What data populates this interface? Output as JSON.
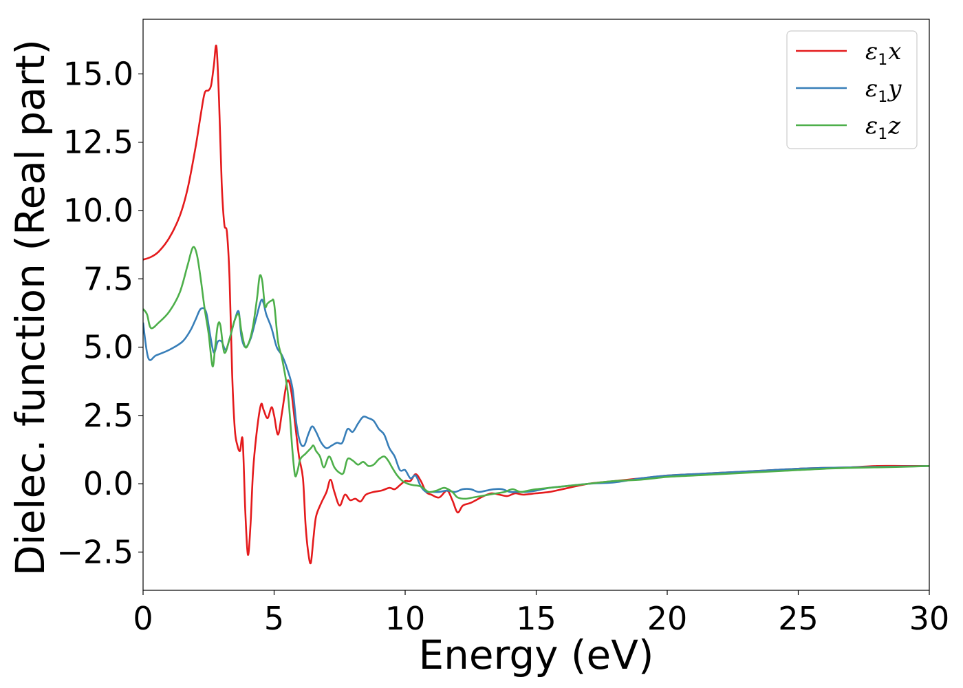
{
  "chart_data": {
    "type": "line",
    "xlabel": "Energy (eV)",
    "ylabel": "Dielec. function (Real part)",
    "xlim": [
      0,
      30
    ],
    "ylim": [
      -3.9,
      17
    ],
    "xticks": [
      0,
      5,
      10,
      15,
      20,
      25,
      30
    ],
    "xtick_labels": [
      "0",
      "5",
      "10",
      "15",
      "20",
      "25",
      "30"
    ],
    "yticks": [
      -2.5,
      0.0,
      2.5,
      5.0,
      7.5,
      10.0,
      12.5,
      15.0
    ],
    "ytick_labels": [
      "−2.5",
      "0.0",
      "2.5",
      "5.0",
      "7.5",
      "10.0",
      "12.5",
      "15.0"
    ],
    "grid": false,
    "legend_position": "top-right",
    "series": [
      {
        "name": "ε₁x",
        "legend_main": "ε",
        "legend_sub": "1",
        "legend_var": "x",
        "color": "#e41a1c",
        "x": [
          0,
          0.3,
          0.6,
          1.0,
          1.4,
          1.7,
          2.0,
          2.2,
          2.35,
          2.5,
          2.6,
          2.7,
          2.8,
          2.9,
          3.0,
          3.1,
          3.2,
          3.3,
          3.4,
          3.5,
          3.6,
          3.7,
          3.8,
          3.9,
          4.0,
          4.1,
          4.2,
          4.35,
          4.5,
          4.6,
          4.75,
          4.9,
          5.0,
          5.15,
          5.3,
          5.5,
          5.65,
          5.8,
          5.95,
          6.1,
          6.2,
          6.3,
          6.4,
          6.5,
          6.6,
          6.8,
          7.0,
          7.15,
          7.3,
          7.5,
          7.7,
          7.9,
          8.1,
          8.3,
          8.5,
          8.8,
          9.1,
          9.4,
          9.6,
          9.8,
          10.0,
          10.2,
          10.4,
          10.6,
          10.8,
          11.0,
          11.3,
          11.6,
          11.8,
          12.0,
          12.2,
          12.5,
          12.8,
          13.0,
          13.3,
          13.6,
          13.9,
          14.2,
          14.5,
          15.0,
          15.5,
          16.0,
          17.0,
          18.0,
          19.0,
          20.0,
          21.0,
          22.0,
          23.0,
          24.0,
          25.0,
          26.0,
          27.0,
          28.0,
          29.0,
          30.0
        ],
        "y": [
          8.2,
          8.3,
          8.5,
          9.0,
          9.8,
          10.8,
          12.3,
          13.5,
          14.3,
          14.4,
          14.6,
          15.3,
          16.0,
          14.0,
          11.0,
          9.5,
          9.2,
          7.5,
          4.0,
          2.0,
          1.4,
          1.2,
          1.6,
          -1.0,
          -2.6,
          -1.5,
          0.5,
          2.0,
          2.9,
          2.7,
          2.4,
          2.8,
          2.5,
          1.8,
          2.6,
          3.75,
          3.4,
          2.2,
          1.0,
          0.2,
          -1.5,
          -2.5,
          -2.9,
          -2.0,
          -1.2,
          -0.7,
          -0.3,
          0.15,
          -0.3,
          -0.8,
          -0.4,
          -0.6,
          -0.55,
          -0.65,
          -0.4,
          -0.3,
          -0.25,
          -0.15,
          -0.2,
          -0.05,
          0.1,
          0.1,
          0.35,
          0.1,
          -0.3,
          -0.4,
          -0.5,
          -0.25,
          -0.6,
          -1.05,
          -0.8,
          -0.7,
          -0.55,
          -0.45,
          -0.35,
          -0.4,
          -0.45,
          -0.35,
          -0.4,
          -0.35,
          -0.3,
          -0.2,
          0.0,
          0.1,
          0.2,
          0.3,
          0.35,
          0.4,
          0.45,
          0.5,
          0.55,
          0.58,
          0.6,
          0.65,
          0.65,
          0.65
        ]
      },
      {
        "name": "ε₁y",
        "legend_main": "ε",
        "legend_sub": "1",
        "legend_var": "y",
        "color": "#377eb8",
        "x": [
          0,
          0.2,
          0.5,
          1.0,
          1.5,
          1.8,
          2.0,
          2.2,
          2.4,
          2.55,
          2.7,
          2.85,
          3.0,
          3.15,
          3.3,
          3.5,
          3.65,
          3.75,
          3.9,
          4.1,
          4.3,
          4.5,
          4.6,
          4.7,
          4.9,
          5.1,
          5.3,
          5.5,
          5.7,
          5.85,
          6.0,
          6.15,
          6.3,
          6.45,
          6.6,
          6.8,
          7.0,
          7.2,
          7.4,
          7.6,
          7.8,
          8.0,
          8.2,
          8.4,
          8.6,
          8.8,
          9.0,
          9.2,
          9.4,
          9.6,
          9.8,
          10.0,
          10.2,
          10.4,
          10.6,
          10.8,
          11.0,
          11.3,
          11.6,
          11.9,
          12.2,
          12.5,
          12.8,
          13.1,
          13.4,
          13.7,
          14.0,
          14.3,
          14.6,
          15.0,
          15.5,
          16.0,
          17.0,
          18.0,
          19.0,
          20.0,
          21.0,
          22.0,
          23.0,
          24.0,
          25.0,
          26.0,
          27.0,
          28.0,
          29.0,
          30.0
        ],
        "y": [
          5.9,
          4.6,
          4.7,
          4.9,
          5.2,
          5.6,
          6.0,
          6.4,
          6.3,
          5.5,
          4.8,
          5.2,
          5.2,
          4.9,
          5.3,
          6.0,
          6.3,
          5.4,
          5.0,
          5.3,
          6.0,
          6.7,
          6.6,
          6.2,
          5.7,
          5.0,
          4.7,
          4.2,
          3.5,
          2.2,
          1.5,
          1.4,
          1.8,
          2.1,
          1.9,
          1.5,
          1.3,
          1.4,
          1.5,
          1.5,
          2.0,
          1.9,
          2.2,
          2.45,
          2.4,
          2.3,
          2.0,
          1.8,
          1.3,
          1.0,
          0.5,
          0.5,
          0.2,
          0.3,
          -0.1,
          -0.3,
          -0.3,
          -0.3,
          -0.25,
          -0.3,
          -0.2,
          -0.2,
          -0.3,
          -0.25,
          -0.2,
          -0.2,
          -0.3,
          -0.3,
          -0.3,
          -0.25,
          -0.15,
          -0.1,
          0.0,
          0.05,
          0.2,
          0.3,
          0.35,
          0.4,
          0.45,
          0.5,
          0.55,
          0.58,
          0.6,
          0.62,
          0.63,
          0.65
        ]
      },
      {
        "name": "ε₁z",
        "legend_main": "ε",
        "legend_sub": "1",
        "legend_var": "z",
        "color": "#4daf4a",
        "x": [
          0,
          0.15,
          0.3,
          0.6,
          1.0,
          1.4,
          1.7,
          1.9,
          2.05,
          2.2,
          2.35,
          2.5,
          2.65,
          2.75,
          2.85,
          2.95,
          3.1,
          3.3,
          3.5,
          3.65,
          3.75,
          3.9,
          4.05,
          4.2,
          4.35,
          4.45,
          4.55,
          4.65,
          4.75,
          4.9,
          5.0,
          5.15,
          5.3,
          5.5,
          5.6,
          5.7,
          5.8,
          5.9,
          6.0,
          6.2,
          6.4,
          6.5,
          6.6,
          6.75,
          6.9,
          7.1,
          7.3,
          7.5,
          7.65,
          7.8,
          8.0,
          8.2,
          8.4,
          8.6,
          8.8,
          9.0,
          9.2,
          9.35,
          9.5,
          9.7,
          9.9,
          10.1,
          10.3,
          10.6,
          10.9,
          11.2,
          11.5,
          11.8,
          12.0,
          12.3,
          12.6,
          12.9,
          13.2,
          13.5,
          13.8,
          14.1,
          14.4,
          14.7,
          15.0,
          15.5,
          16.0,
          17.0,
          18.0,
          19.0,
          20.0,
          21.0,
          22.0,
          23.0,
          24.0,
          25.0,
          26.0,
          27.0,
          28.0,
          29.0,
          30.0
        ],
        "y": [
          6.4,
          6.2,
          5.7,
          5.9,
          6.3,
          7.0,
          8.0,
          8.65,
          8.4,
          7.5,
          6.4,
          5.5,
          4.3,
          5.0,
          5.8,
          5.8,
          4.8,
          5.3,
          6.0,
          6.2,
          5.6,
          5.0,
          5.2,
          5.8,
          6.8,
          7.6,
          7.4,
          6.5,
          6.6,
          6.7,
          6.6,
          5.2,
          4.6,
          3.5,
          2.5,
          1.2,
          0.3,
          0.5,
          0.9,
          1.1,
          1.3,
          1.4,
          1.2,
          1.0,
          0.6,
          1.0,
          0.6,
          0.4,
          0.4,
          0.9,
          0.85,
          0.7,
          0.8,
          0.65,
          0.7,
          0.9,
          1.0,
          0.85,
          0.6,
          0.3,
          0.1,
          0.0,
          -0.05,
          -0.1,
          -0.3,
          -0.25,
          -0.15,
          -0.3,
          -0.5,
          -0.55,
          -0.5,
          -0.45,
          -0.4,
          -0.35,
          -0.3,
          -0.2,
          -0.3,
          -0.25,
          -0.2,
          -0.15,
          -0.1,
          0.0,
          0.1,
          0.15,
          0.25,
          0.3,
          0.35,
          0.4,
          0.45,
          0.5,
          0.55,
          0.58,
          0.6,
          0.62,
          0.65
        ]
      }
    ]
  }
}
